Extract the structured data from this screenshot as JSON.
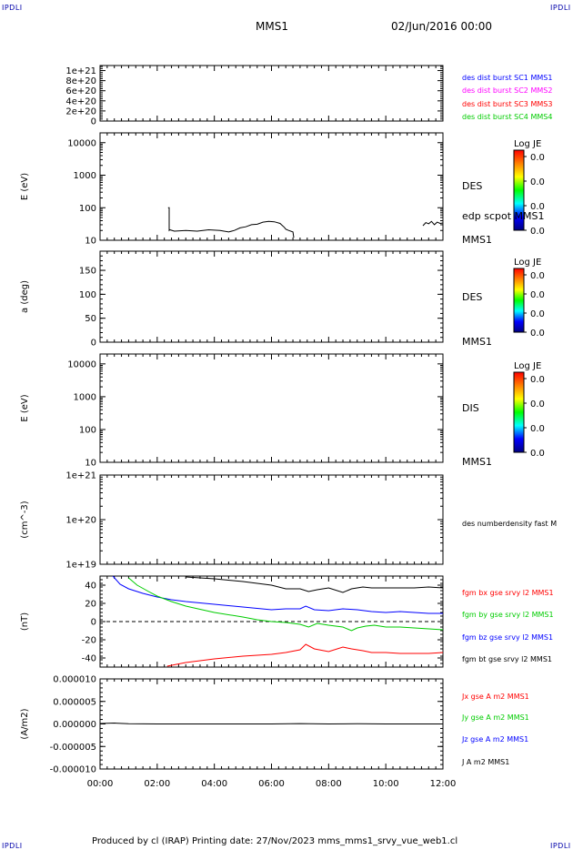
{
  "header": {
    "corner_left_top": "IPDLI",
    "corner_right_top": "IPDLI",
    "corner_left_bottom": "IPDLI",
    "corner_right_bottom": "IPDLI",
    "spacecraft": "MMS1",
    "date": "02/Jun/2016 00:00"
  },
  "footer": {
    "text": "Produced by cl (IRAP)   Printing date: 27/Nov/2023   mms_mms1_srvy_vue_web1.cl"
  },
  "colors": {
    "black": "#000000",
    "blue": "#0000ff",
    "magenta": "#ff00ff",
    "red": "#ff0000",
    "green": "#00cc00",
    "colorbar": [
      "#ff0000",
      "#ff8000",
      "#ffff00",
      "#00ff00",
      "#00ffff",
      "#0000ff",
      "#000080"
    ]
  },
  "chart_data": [
    {
      "id": "p1",
      "type": "line",
      "yscale": "linear",
      "ylim": [
        0,
        1.1e+21
      ],
      "yticks": [
        0,
        2e+20,
        4e+20,
        6e+20,
        8e+20,
        1e+21
      ],
      "ytick_labels": [
        "0",
        "2e+20",
        "4e+20",
        "6e+20",
        "8e+20",
        "1e+21"
      ],
      "ylabel": "",
      "zero_line": true,
      "right_labels": [
        {
          "text": "des dist burst SC1 MMS1",
          "color": "#0000ff"
        },
        {
          "text": "des dist burst SC2 MMS2",
          "color": "#ff00ff"
        },
        {
          "text": "des dist burst SC3 MMS3",
          "color": "#ff0000"
        },
        {
          "text": "des dist burst SC4 MMS4",
          "color": "#00cc00"
        }
      ],
      "series": []
    },
    {
      "id": "p2",
      "type": "line",
      "yscale": "log",
      "ylim": [
        10,
        20000
      ],
      "yticks": [
        10,
        100,
        1000,
        10000
      ],
      "ytick_labels": [
        "10",
        "100",
        "1000",
        "10000"
      ],
      "ylabel": "E (eV)",
      "right_labels": [
        {
          "text": "DES",
          "color": "#000000"
        },
        {
          "text": "edp scpot MMS1",
          "color": "#000000"
        },
        {
          "text": "MMS1",
          "color": "#000000"
        }
      ],
      "colorbar": {
        "label": "Log JE",
        "ticks": [
          "0.0",
          "0.0",
          "0.0",
          "0.0"
        ]
      },
      "series": [
        {
          "color": "#000000",
          "x": [
            2.38,
            2.42,
            2.42,
            2.44,
            2.6,
            3.0,
            3.4,
            3.8,
            4.2,
            4.5,
            4.7,
            4.9,
            5.1,
            5.3,
            5.5,
            5.7,
            5.9,
            6.1,
            6.3,
            6.45,
            6.5,
            6.6,
            6.75,
            6.78
          ],
          "y": [
            100,
            100,
            20,
            21,
            19,
            20,
            19,
            21,
            20,
            18,
            20,
            24,
            26,
            30,
            31,
            36,
            38,
            37,
            33,
            25,
            22,
            20,
            18,
            12
          ]
        },
        {
          "color": "#000000",
          "x": [
            11.3,
            11.4,
            11.5,
            11.6,
            11.7,
            11.8,
            11.9,
            12.0
          ],
          "y": [
            28,
            35,
            32,
            38,
            30,
            36,
            33,
            34
          ]
        }
      ]
    },
    {
      "id": "p3",
      "type": "line",
      "yscale": "linear",
      "ylim": [
        0,
        190
      ],
      "yticks": [
        0,
        50,
        100,
        150
      ],
      "ytick_labels": [
        "0",
        "50",
        "100",
        "150"
      ],
      "ylabel": "a (deg)",
      "right_labels": [
        {
          "text": "DES",
          "color": "#000000"
        },
        {
          "text": "MMS1",
          "color": "#000000"
        }
      ],
      "colorbar": {
        "label": "Log JE",
        "ticks": [
          "0.0",
          "0.0",
          "0.0",
          "0.0"
        ]
      },
      "series": []
    },
    {
      "id": "p4",
      "type": "line",
      "yscale": "log",
      "ylim": [
        10,
        20000
      ],
      "yticks": [
        10,
        100,
        1000,
        10000
      ],
      "ytick_labels": [
        "10",
        "100",
        "1000",
        "10000"
      ],
      "ylabel": "E (eV)",
      "right_labels": [
        {
          "text": "DIS",
          "color": "#000000"
        },
        {
          "text": "MMS1",
          "color": "#000000"
        }
      ],
      "colorbar": {
        "label": "Log JE",
        "ticks": [
          "0.0",
          "0.0",
          "0.0",
          "0.0"
        ]
      },
      "series": []
    },
    {
      "id": "p5",
      "type": "line",
      "yscale": "log",
      "ylim": [
        1e+19,
        1e+21
      ],
      "yticks": [
        1e+19,
        1e+20,
        1e+21
      ],
      "ytick_labels": [
        "1e+19",
        "1e+20",
        "1e+21"
      ],
      "ylabel": "(cm^-3)",
      "right_labels": [
        {
          "text": "des numberdensity fast M",
          "color": "#000000"
        }
      ],
      "series": []
    },
    {
      "id": "p6",
      "type": "line",
      "yscale": "linear",
      "ylim": [
        -50,
        50
      ],
      "yticks": [
        -40,
        -20,
        0,
        20,
        40
      ],
      "ytick_labels": [
        "-40",
        "-20",
        "0",
        "20",
        "40"
      ],
      "ylabel": "(nT)",
      "zero_line": true,
      "right_labels": [
        {
          "text": "fgm bx gse srvy l2 MMS1",
          "color": "#ff0000"
        },
        {
          "text": "fgm by gse srvy l2 MMS1",
          "color": "#00cc00"
        },
        {
          "text": "fgm bz gse srvy l2 MMS1",
          "color": "#0000ff"
        },
        {
          "text": "fgm bt gse srvy l2 MMS1",
          "color": "#000000"
        }
      ],
      "series": [
        {
          "color": "#000000",
          "x": [
            3.0,
            4.0,
            5.0,
            6.0,
            6.5,
            7.0,
            7.3,
            7.6,
            8.0,
            8.5,
            8.8,
            9.2,
            9.5,
            10.0,
            10.5,
            11.0,
            11.5,
            12.0
          ],
          "y": [
            49,
            47,
            44,
            40,
            36,
            36,
            33,
            35,
            37,
            32,
            36,
            38,
            37,
            37,
            37,
            37,
            38,
            37
          ]
        },
        {
          "color": "#0000ff",
          "x": [
            0.45,
            0.7,
            1.0,
            1.5,
            2.0,
            2.5,
            3.0,
            4.0,
            5.0,
            6.0,
            6.5,
            7.0,
            7.2,
            7.5,
            8.0,
            8.5,
            9.0,
            9.5,
            10.0,
            10.5,
            11.0,
            11.5,
            12.0
          ],
          "y": [
            50,
            41,
            36,
            31,
            27,
            24,
            22,
            19,
            16,
            13,
            14,
            14,
            17,
            13,
            12,
            14,
            13,
            11,
            10,
            11,
            10,
            9,
            9
          ]
        },
        {
          "color": "#00cc00",
          "x": [
            1.0,
            1.3,
            1.7,
            2.0,
            2.5,
            3.0,
            4.0,
            5.0,
            5.5,
            6.0,
            6.5,
            7.0,
            7.3,
            7.6,
            8.0,
            8.5,
            8.8,
            9.0,
            9.3,
            9.6,
            10.0,
            10.5,
            11.0,
            11.5,
            12.0
          ],
          "y": [
            48,
            40,
            33,
            28,
            22,
            17,
            10,
            5,
            2,
            0,
            -1,
            -3,
            -6,
            -2,
            -4,
            -6,
            -10,
            -7,
            -5,
            -4,
            -6,
            -6,
            -7,
            -8,
            -9
          ]
        },
        {
          "color": "#ff0000",
          "x": [
            2.35,
            3.0,
            4.0,
            5.0,
            5.5,
            6.0,
            6.5,
            7.0,
            7.2,
            7.5,
            8.0,
            8.5,
            8.8,
            9.2,
            9.5,
            10.0,
            10.5,
            11.0,
            11.5,
            12.0
          ],
          "y": [
            -49,
            -45,
            -41,
            -38,
            -37,
            -36,
            -34,
            -31,
            -25,
            -30,
            -33,
            -28,
            -30,
            -32,
            -34,
            -34,
            -35,
            -35,
            -35,
            -34
          ]
        }
      ]
    },
    {
      "id": "p7",
      "type": "line",
      "yscale": "linear",
      "ylim": [
        -1e-05,
        1e-05
      ],
      "yticks": [
        -1e-05,
        -5e-06,
        0,
        5e-06,
        1e-05
      ],
      "ytick_labels": [
        "-0.000010",
        "-0.000005",
        "0.000000",
        "0.000005",
        "0.000010"
      ],
      "ylabel": "(A/m2)",
      "right_labels": [
        {
          "text": "Jx gse A m2 MMS1",
          "color": "#ff0000"
        },
        {
          "text": "Jy gse A m2 MMS1",
          "color": "#00cc00"
        },
        {
          "text": "Jz gse A m2 MMS1",
          "color": "#0000ff"
        },
        {
          "text": "J A m2 MMS1",
          "color": "#000000"
        }
      ],
      "series": [
        {
          "color": "#000000",
          "x": [
            0,
            0.5,
            1.0,
            2.0,
            4.0,
            6.0,
            7.0,
            8.0,
            9.0,
            10.0,
            12.0
          ],
          "y": [
            1e-07,
            2e-07,
            5e-08,
            0,
            0,
            0,
            8e-08,
            0,
            5e-08,
            0,
            0
          ]
        }
      ]
    }
  ],
  "xaxis": {
    "xlim": [
      0,
      12
    ],
    "ticks": [
      0,
      2,
      4,
      6,
      8,
      10,
      12
    ],
    "tick_labels": [
      "00:00",
      "02:00",
      "04:00",
      "06:00",
      "08:00",
      "10:00",
      "12:00"
    ]
  }
}
